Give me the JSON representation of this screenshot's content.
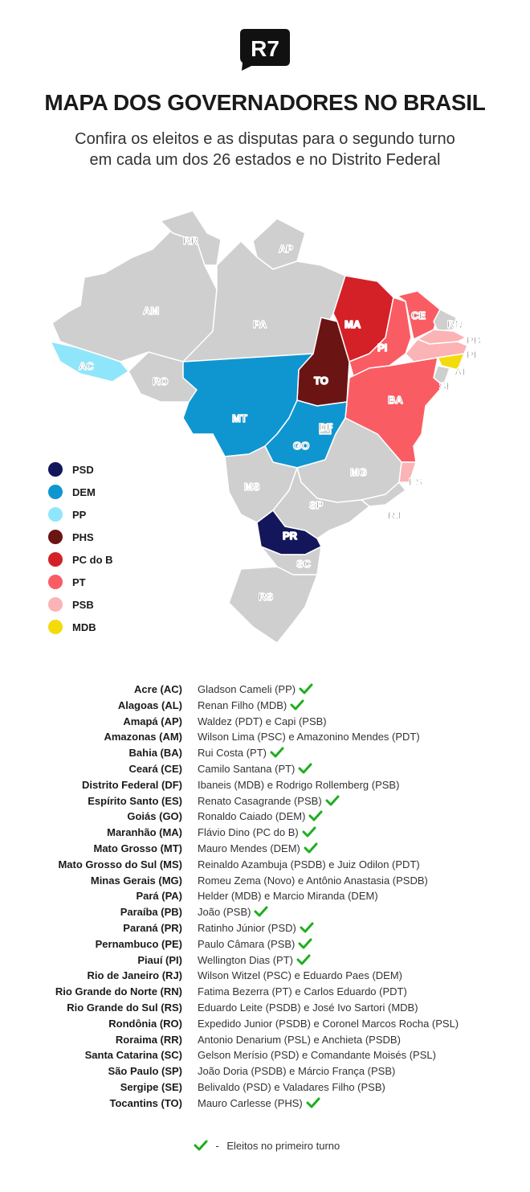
{
  "logo": {
    "text": "R7"
  },
  "title": "MAPA DOS GOVERNADORES NO BRASIL",
  "subtitle": {
    "line1": "Confira os eleitos e as disputas para o segundo turno",
    "line2": "em cada um dos 26 estados e no Distrito Federal"
  },
  "colors": {
    "land": "#cfcfcf",
    "border": "#ffffff",
    "PSD": "#13165a",
    "DEM": "#0f96d1",
    "PP": "#8fe6fb",
    "PHS": "#6b1414",
    "PCdoB": "#d42027",
    "PT": "#fa5c63",
    "PSB": "#fbb3b6",
    "MDB": "#f3db0c",
    "check": "#1fae1f"
  },
  "map_labels": {
    "RR": "RR",
    "AP": "AP",
    "AM": "AM",
    "PA": "PA",
    "AC": "AC",
    "RO": "RO",
    "MA": "MA",
    "CE": "CE",
    "RN": "RN",
    "PB": "PB",
    "PE": "PE",
    "PI": "PI",
    "AL": "AL",
    "SE": "SE",
    "TO": "TO",
    "BA": "BA",
    "MT": "MT",
    "DF": "DF",
    "GO": "GO",
    "MG": "MG",
    "ES": "ES",
    "MS": "MS",
    "SP": "SP",
    "RJ": "RJ",
    "PR": "PR",
    "SC": "SC",
    "RS": "RS"
  },
  "legend": [
    {
      "label": "PSD",
      "color": "#13165a"
    },
    {
      "label": "DEM",
      "color": "#0f96d1"
    },
    {
      "label": "PP",
      "color": "#8fe6fb"
    },
    {
      "label": "PHS",
      "color": "#6b1414"
    },
    {
      "label": "PC do B",
      "color": "#d42027"
    },
    {
      "label": "PT",
      "color": "#fa5c63"
    },
    {
      "label": "PSB",
      "color": "#fbb3b6"
    },
    {
      "label": "MDB",
      "color": "#f3db0c"
    }
  ],
  "states": [
    {
      "state": "Acre (AC)",
      "governor": "Gladson Cameli (PP)",
      "elected": true
    },
    {
      "state": "Alagoas (AL)",
      "governor": "Renan Filho (MDB)",
      "elected": true
    },
    {
      "state": "Amapá (AP)",
      "governor": "Waldez (PDT) e Capi (PSB)",
      "elected": false
    },
    {
      "state": "Amazonas (AM)",
      "governor": "Wilson Lima (PSC) e Amazonino Mendes (PDT)",
      "elected": false
    },
    {
      "state": "Bahia (BA)",
      "governor": "Rui Costa (PT)",
      "elected": true
    },
    {
      "state": "Ceará (CE)",
      "governor": "Camilo Santana (PT)",
      "elected": true
    },
    {
      "state": "Distrito Federal (DF)",
      "governor": "Ibaneis (MDB) e Rodrigo Rollemberg (PSB)",
      "elected": false
    },
    {
      "state": "Espírito Santo (ES)",
      "governor": "Renato Casagrande (PSB)",
      "elected": true
    },
    {
      "state": "Goiás (GO)",
      "governor": "Ronaldo Caiado (DEM)",
      "elected": true
    },
    {
      "state": "Maranhão (MA)",
      "governor": "Flávio Dino (PC do B)",
      "elected": true
    },
    {
      "state": "Mato Grosso (MT)",
      "governor": "Mauro Mendes (DEM)",
      "elected": true
    },
    {
      "state": "Mato Grosso do Sul (MS)",
      "governor": "Reinaldo Azambuja (PSDB) e Juiz Odilon (PDT)",
      "elected": false
    },
    {
      "state": "Minas Gerais (MG)",
      "governor": "Romeu Zema (Novo) e Antônio Anastasia (PSDB)",
      "elected": false
    },
    {
      "state": "Pará (PA)",
      "governor": "Helder (MDB) e Marcio Miranda (DEM)",
      "elected": false
    },
    {
      "state": "Paraíba (PB)",
      "governor": "João (PSB)",
      "elected": true
    },
    {
      "state": "Paraná (PR)",
      "governor": "Ratinho Júnior (PSD)",
      "elected": true
    },
    {
      "state": "Pernambuco (PE)",
      "governor": "Paulo Câmara (PSB)",
      "elected": true
    },
    {
      "state": "Piauí (PI)",
      "governor": "Wellington Dias (PT)",
      "elected": true
    },
    {
      "state": "Rio de Janeiro (RJ)",
      "governor": "Wilson Witzel (PSC) e Eduardo Paes (DEM)",
      "elected": false
    },
    {
      "state": "Rio Grande do Norte (RN)",
      "governor": "Fatima Bezerra (PT) e Carlos Eduardo (PDT)",
      "elected": false
    },
    {
      "state": "Rio Grande do Sul (RS)",
      "governor": "Eduardo Leite (PSDB) e José Ivo Sartori (MDB)",
      "elected": false
    },
    {
      "state": "Rondônia (RO)",
      "governor": "Expedido Junior (PSDB) e Coronel Marcos Rocha (PSL)",
      "elected": false
    },
    {
      "state": "Roraima (RR)",
      "governor": "Antonio Denarium (PSL) e Anchieta (PSDB)",
      "elected": false
    },
    {
      "state": "Santa Catarina (SC)",
      "governor": "Gelson Merísio (PSD) e Comandante Moisés (PSL)",
      "elected": false
    },
    {
      "state": "São Paulo (SP)",
      "governor": "João Doria (PSDB) e Márcio França (PSB)",
      "elected": false
    },
    {
      "state": "Sergipe (SE)",
      "governor": "Belivaldo (PSD) e Valadares Filho (PSB)",
      "elected": false
    },
    {
      "state": "Tocantins (TO)",
      "governor": "Mauro Carlesse (PHS)",
      "elected": true
    }
  ],
  "footnote": {
    "separator": "-",
    "text": "Eleitos no primeiro turno"
  }
}
